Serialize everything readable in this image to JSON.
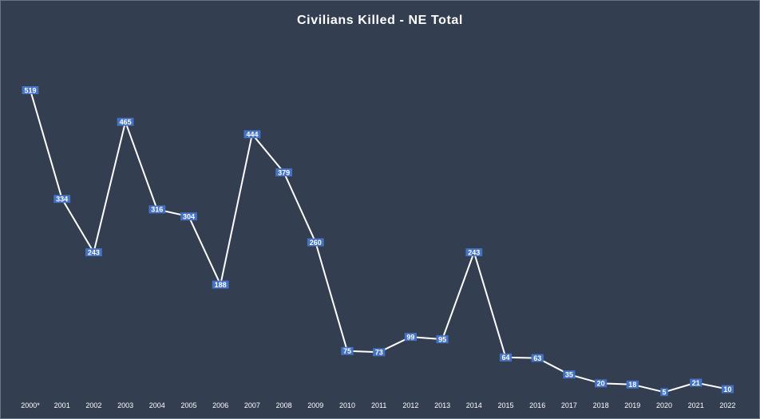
{
  "chart_data": {
    "type": "line",
    "title": "Civilians Killed - NE Total",
    "xlabel": "",
    "ylabel": "",
    "categories": [
      "2000*",
      "2001",
      "2002",
      "2003",
      "2004",
      "2005",
      "2006",
      "2007",
      "2008",
      "2009",
      "2010",
      "2011",
      "2012",
      "2013",
      "2014",
      "2015",
      "2016",
      "2017",
      "2018",
      "2019",
      "2020",
      "2021",
      "2022"
    ],
    "series": [
      {
        "values": [
          519,
          334,
          243,
          465,
          316,
          304,
          188,
          444,
          379,
          260,
          75,
          73,
          99,
          95,
          243,
          64,
          63,
          35,
          20,
          18,
          5,
          21,
          10
        ]
      }
    ],
    "ylim": [
      0,
      519
    ],
    "grid": false,
    "legend": "none",
    "data_labels": true,
    "colors": {
      "background": "#333e50",
      "line": "#ffffff",
      "label_fill": "#4472c4",
      "text": "#ffffff"
    }
  }
}
